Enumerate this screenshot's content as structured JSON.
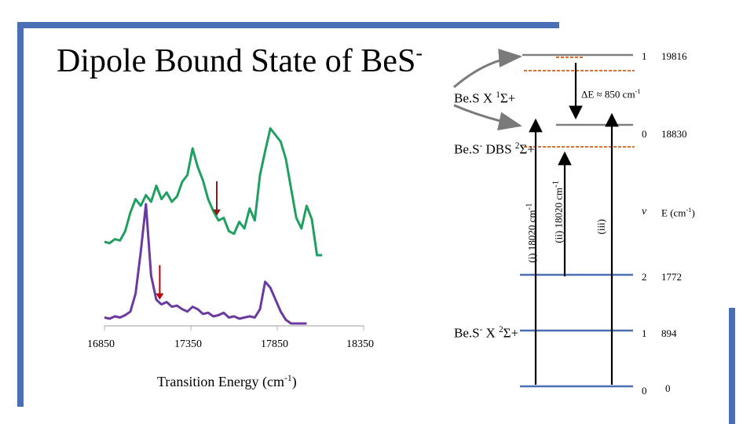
{
  "slide": {
    "title": "Dipole Bound State of BeS",
    "title_superscript": "-",
    "frame_color": "#4a6fb5"
  },
  "chart_data": {
    "type": "line",
    "xlabel": "Transition Energy (cm",
    "xlabel_superscript": "-1",
    "xlabel_suffix": ")",
    "xticks": [
      "16850",
      "17350",
      "17850",
      "18350"
    ],
    "xlim": [
      16850,
      18350
    ],
    "series": [
      {
        "color": "#20a060",
        "x": [
          16850,
          16880,
          16910,
          16940,
          16970,
          17000,
          17030,
          17060,
          17090,
          17120,
          17150,
          17180,
          17210,
          17240,
          17270,
          17300,
          17330,
          17360,
          17390,
          17420,
          17450,
          17480,
          17510,
          17540,
          17570,
          17600,
          17630,
          17660,
          17690,
          17720,
          17750,
          17780,
          17810,
          17840,
          17870,
          17900,
          17930,
          17960,
          17990,
          18020,
          18050,
          18080,
          18110
        ],
        "y": [
          0.1,
          0.09,
          0.12,
          0.11,
          0.18,
          0.32,
          0.42,
          0.37,
          0.45,
          0.4,
          0.52,
          0.42,
          0.47,
          0.4,
          0.44,
          0.55,
          0.6,
          0.8,
          0.66,
          0.56,
          0.42,
          0.33,
          0.26,
          0.28,
          0.18,
          0.16,
          0.25,
          0.2,
          0.35,
          0.26,
          0.6,
          0.78,
          0.95,
          0.9,
          0.85,
          0.72,
          0.5,
          0.28,
          0.2,
          0.37,
          0.27,
          0.0,
          0.0
        ]
      },
      {
        "color": "#6a3aa0",
        "x": [
          16850,
          16880,
          16910,
          16940,
          16970,
          17000,
          17030,
          17060,
          17090,
          17120,
          17150,
          17180,
          17210,
          17240,
          17270,
          17300,
          17330,
          17360,
          17390,
          17420,
          17450,
          17480,
          17510,
          17540,
          17570,
          17600,
          17630,
          17660,
          17690,
          17720,
          17750,
          17780,
          17810,
          17840,
          17870,
          17900,
          17930,
          17960,
          17990,
          18020
        ],
        "y": [
          0.05,
          0.04,
          0.06,
          0.05,
          0.07,
          0.1,
          0.25,
          0.6,
          1.0,
          0.4,
          0.2,
          0.16,
          0.18,
          0.14,
          0.15,
          0.12,
          0.1,
          0.14,
          0.12,
          0.08,
          0.09,
          0.06,
          0.07,
          0.09,
          0.05,
          0.06,
          0.04,
          0.05,
          0.06,
          0.05,
          0.12,
          0.35,
          0.3,
          0.2,
          0.1,
          0.03,
          0.0,
          0.0,
          0.0,
          0.0
        ]
      }
    ],
    "annotations": [
      {
        "label": "arrow",
        "x": 17170,
        "series": 1,
        "color": "#c00000"
      },
      {
        "label": "arrow",
        "x": 17500,
        "series": 0,
        "color": "#8b1a1a"
      }
    ]
  },
  "diagram": {
    "upper_state_label": "Be.S X ",
    "upper_state_sup": "1",
    "upper_state_symbol": "Σ+",
    "dbs_label": "Be.S",
    "dbs_sup": "-",
    "dbs_mid": " DBS ",
    "dbs_sup2": "2",
    "dbs_symbol": "Σ+",
    "lower_state_label": "Be.S",
    "lower_state_sup": "-",
    "lower_state_mid": " X ",
    "lower_state_sup2": "2",
    "lower_state_symbol": "Σ+",
    "delta_e": "ΔE ≈ 850 cm",
    "delta_e_sup": "-1",
    "transition_i": "(i) 18020 cm",
    "transition_ii": "(ii) 18020 cm",
    "transition_sup": "-1",
    "transition_iii": "(iii)",
    "header_v": "v",
    "header_e": "E (cm",
    "header_e_sup": "-1",
    "header_e_suffix": ")",
    "upper_levels": [
      {
        "v": "1",
        "e": "19816"
      },
      {
        "v": "0",
        "e": "18830"
      }
    ],
    "lower_levels": [
      {
        "v": "2",
        "e": "1772"
      },
      {
        "v": "1",
        "e": "894"
      },
      {
        "v": "0",
        "e": "0"
      }
    ],
    "level_color_upper": "#808080",
    "level_color_lower": "#4a6fb5",
    "dbs_dash_color": "#e07030"
  }
}
